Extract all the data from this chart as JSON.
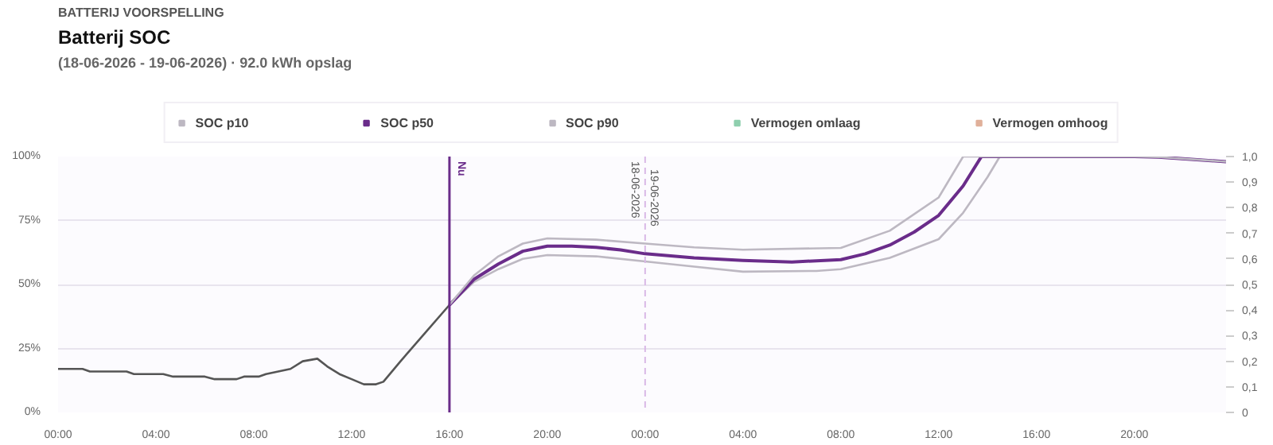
{
  "chart_data": {
    "type": "line",
    "title": "Batterij SOC",
    "subtitle": "(18-06-2026 - 19-06-2026)  · 92.0 kWh opslag",
    "annotations": [
      "BATTERIJ VOORSPELLING",
      {
        "text": "19-06-2026",
        "x": "2026-06-19T00:00",
        "y": 95
      }
    ],
    "series": [
      {
        "color": "#555555",
        "x": [
          "2026-06-18T00:00",
          "2026-06-18T01:00",
          "2026-06-18T01:18",
          "2026-06-18T02:48",
          "2026-06-18T03:06",
          "2026-06-18T04:18",
          "2026-06-18T04:42",
          "2026-06-18T06:00",
          "2026-06-18T06:24",
          "2026-06-18T07:18",
          "2026-06-18T07:36",
          "2026-06-18T08:12",
          "2026-06-18T08:30",
          "2026-06-18T09:00",
          "2026-06-18T09:30",
          "2026-06-18T10:00",
          "2026-06-18T10:36",
          "2026-06-18T11:00",
          "2026-06-18T11:30",
          "2026-06-18T12:00",
          "2026-06-18T12:30",
          "2026-06-18T13:00",
          "2026-06-18T13:18",
          "2026-06-18T14:00",
          "2026-06-18T15:00",
          "2026-06-18T16:00"
        ],
        "values": [
          17,
          17,
          16,
          16,
          15,
          15,
          14,
          14,
          13,
          13,
          14,
          14,
          15,
          16,
          17,
          20,
          21,
          18,
          15,
          13,
          11,
          11,
          12,
          20,
          31,
          42
        ]
      },
      {
        "name": "SOC p10",
        "color": "#bdb8c2",
        "x": [
          "2026-06-18T16:00",
          "2026-06-18T17:00",
          "2026-06-18T18:00",
          "2026-06-18T19:00",
          "2026-06-18T20:00",
          "2026-06-18T22:00",
          "2026-06-19T00:00",
          "2026-06-19T02:00",
          "2026-06-19T04:00",
          "2026-06-19T07:00",
          "2026-06-19T08:00",
          "2026-06-19T10:00",
          "2026-06-19T12:00",
          "2026-06-19T13:00",
          "2026-06-19T14:00",
          "2026-06-19T14:30",
          "2026-06-19T20:00",
          "2026-06-19T21:00",
          "2026-06-19T23:45"
        ],
        "values": [
          42,
          51,
          56,
          60,
          61.5,
          61,
          59,
          57,
          55,
          55.3,
          56,
          60.4,
          67.7,
          78,
          92,
          100,
          100,
          99.8,
          98
        ]
      },
      {
        "name": "SOC p50",
        "color": "#6a2c8a",
        "x": [
          "2026-06-18T16:00",
          "2026-06-18T17:00",
          "2026-06-18T18:00",
          "2026-06-18T19:00",
          "2026-06-18T20:00",
          "2026-06-18T21:00",
          "2026-06-18T22:00",
          "2026-06-18T23:00",
          "2026-06-19T00:00",
          "2026-06-19T02:00",
          "2026-06-19T04:00",
          "2026-06-19T06:00",
          "2026-06-19T08:00",
          "2026-06-19T09:00",
          "2026-06-19T10:00",
          "2026-06-19T11:00",
          "2026-06-19T12:00",
          "2026-06-19T13:00",
          "2026-06-19T13:45",
          "2026-06-19T20:00",
          "2026-06-19T21:00",
          "2026-06-19T23:45"
        ],
        "values": [
          42,
          52,
          58,
          63,
          65,
          65,
          64.5,
          63.5,
          62,
          60.4,
          59.4,
          58.8,
          59.7,
          62,
          65.4,
          70.5,
          77,
          88.5,
          100,
          100,
          99.8,
          98
        ]
      },
      {
        "name": "SOC p90",
        "color": "#bdb8c2",
        "x": [
          "2026-06-18T16:00",
          "2026-06-18T17:00",
          "2026-06-18T18:00",
          "2026-06-18T19:00",
          "2026-06-18T20:00",
          "2026-06-18T22:00",
          "2026-06-19T00:00",
          "2026-06-19T02:00",
          "2026-06-19T04:00",
          "2026-06-19T08:00",
          "2026-06-19T10:00",
          "2026-06-19T12:00",
          "2026-06-19T13:00",
          "2026-06-19T20:00",
          "2026-06-19T21:00",
          "2026-06-19T23:45"
        ],
        "values": [
          42,
          53.5,
          61,
          66,
          68,
          67.5,
          66,
          64.5,
          63.6,
          64.3,
          71,
          84,
          100,
          100,
          99.8,
          98
        ]
      },
      {
        "name": "Vermogen omlaag",
        "color": "#8fcfae"
      },
      {
        "name": "Vermogen omhoog",
        "color": "#e0b09a"
      }
    ],
    "xlim": [
      "2026-06-18T00:00",
      "2026-06-19T23:45"
    ],
    "xticks": [
      {
        "value": "2026-06-18T00:00",
        "label": "00:00"
      },
      {
        "value": "2026-06-18T04:00",
        "label": "04:00"
      },
      {
        "value": "2026-06-18T08:00",
        "label": "08:00"
      },
      {
        "value": "2026-06-18T12:00",
        "label": "12:00"
      },
      {
        "value": "2026-06-18T16:00",
        "label": "16:00"
      },
      {
        "value": "2026-06-18T20:00",
        "label": "20:00"
      },
      {
        "value": "2026-06-19T00:00",
        "label": "00:00"
      },
      {
        "value": "2026-06-19T04:00",
        "label": "04:00"
      },
      {
        "value": "2026-06-19T08:00",
        "label": "08:00"
      },
      {
        "value": "2026-06-19T12:00",
        "label": "12:00"
      },
      {
        "value": "2026-06-19T16:00",
        "label": "16:00"
      },
      {
        "value": "2026-06-19T20:00",
        "label": "20:00"
      }
    ],
    "ylim": [
      0,
      100
    ],
    "yticks": [
      {
        "value": 0,
        "label": "0%"
      },
      {
        "value": 25,
        "label": "25%"
      },
      {
        "value": 50,
        "label": "50%"
      },
      {
        "value": 75,
        "label": "75%"
      },
      {
        "value": 100,
        "label": "100%"
      }
    ],
    "y2lim": [
      0,
      1
    ],
    "y2ticks": [
      0,
      {
        "value": 0.1,
        "label": "0,1"
      },
      {
        "value": 0.2,
        "label": "0,2"
      },
      {
        "value": 0.3,
        "label": "0,3"
      },
      {
        "value": 0.4,
        "label": "0,4"
      },
      {
        "value": 0.5,
        "label": "0,5"
      },
      {
        "value": 0.6,
        "label": "0,6"
      },
      {
        "value": 0.7,
        "label": "0,7"
      },
      {
        "value": 0.8,
        "label": "0,8"
      },
      {
        "value": 0.9,
        "label": "0,9"
      },
      {
        "value": 1,
        "label": "1,0"
      }
    ],
    "ref_lines": [
      {
        "axis": "x",
        "value": "2026-06-18T16:00",
        "label": "Nu",
        "color": "#6a2c8a",
        "line_style": "solid"
      },
      {
        "axis": "x",
        "value": "2026-06-19T00:00",
        "label": "18-06-2026",
        "color": "#d9b8e6",
        "line_style": "dashed"
      }
    ],
    "grid": "y",
    "legend": "top",
    "marker": "none",
    "line_style": "solid"
  }
}
